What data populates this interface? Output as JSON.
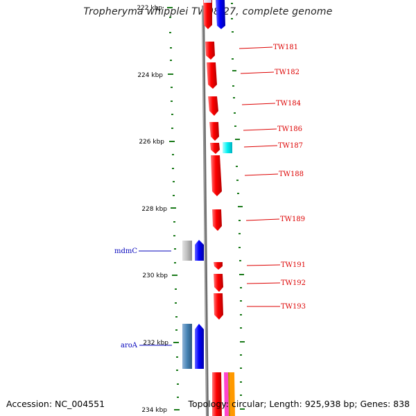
{
  "title": "Tropheryma whipplei TW08/27, complete genome",
  "footer": {
    "accession": "Accession: NC_004551",
    "summary": "Topology: circular; Length: 925,938 bp; Genes: 838"
  },
  "colors": {
    "backbone": "#7a7a7a",
    "tick": "#1a7a1a",
    "gene_red": "#ff0000",
    "gene_blue": "#0000ff",
    "label_red": "#dd0000",
    "label_blue": "#0000bb"
  },
  "scale_labels": [
    "222 kbp",
    "224 kbp",
    "226 kbp",
    "228 kbp",
    "230 kbp",
    "232 kbp",
    "234 kbp"
  ],
  "genes": [
    {
      "label": "TW181",
      "strand": "forward"
    },
    {
      "label": "TW182",
      "strand": "forward"
    },
    {
      "label": "TW184",
      "strand": "forward"
    },
    {
      "label": "TW186",
      "strand": "forward"
    },
    {
      "label": "TW187",
      "strand": "forward"
    },
    {
      "label": "TW188",
      "strand": "forward"
    },
    {
      "label": "TW189",
      "strand": "forward"
    },
    {
      "label": "TW191",
      "strand": "forward"
    },
    {
      "label": "TW192",
      "strand": "forward"
    },
    {
      "label": "TW193",
      "strand": "forward"
    },
    {
      "label": "mdmC",
      "strand": "reverse"
    },
    {
      "label": "aroA",
      "strand": "reverse"
    }
  ]
}
